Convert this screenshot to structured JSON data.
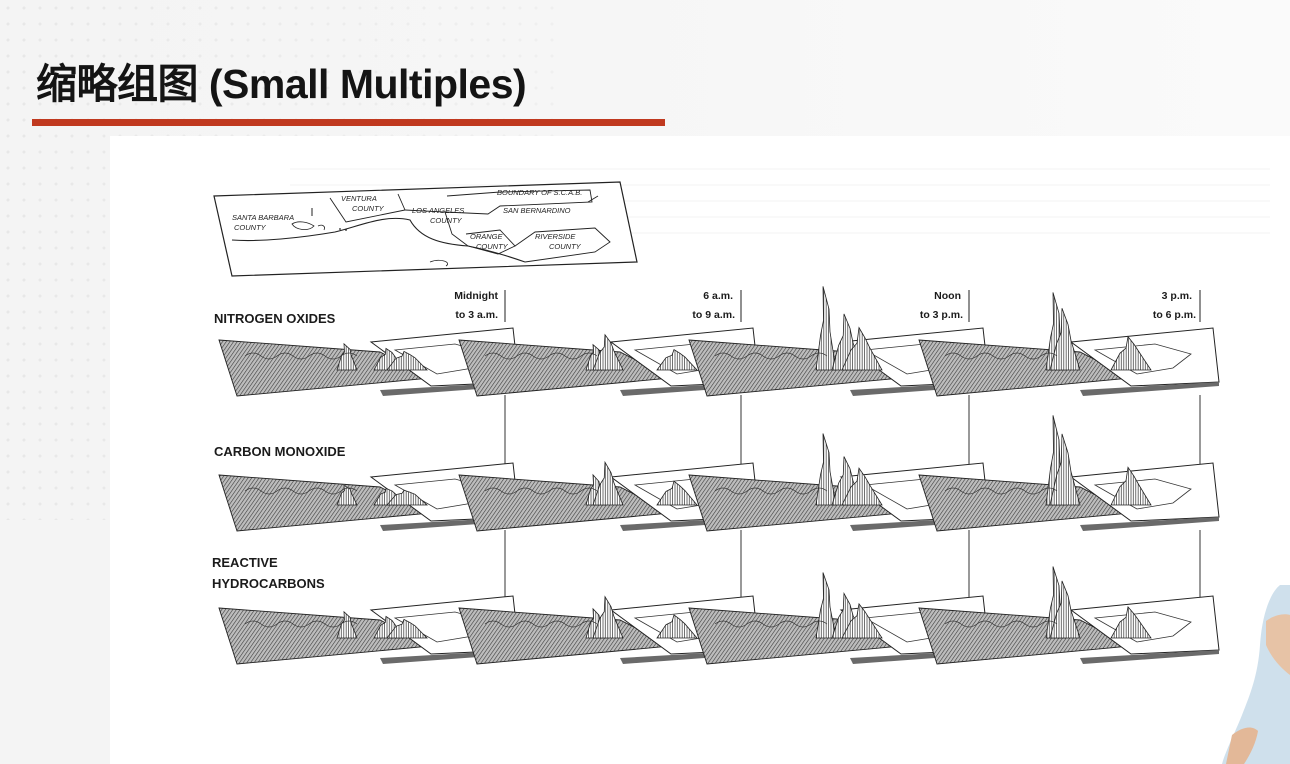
{
  "slide": {
    "title": "缩略组图 (Small Multiples)",
    "accent_color": "#c0391f"
  },
  "figure": {
    "map_labels": {
      "santa_barbara": [
        "SANTA BARBARA",
        "COUNTY"
      ],
      "ventura": [
        "VENTURA",
        "COUNTY"
      ],
      "los_angeles": [
        "LOS ANGELES",
        "COUNTY"
      ],
      "boundary": "BOUNDARY OF S.C.A.B.",
      "san_bernardino": "SAN BERNARDINO",
      "orange": [
        "ORANGE",
        "COUNTY"
      ],
      "riverside": [
        "RIVERSIDE",
        "COUNTY"
      ]
    },
    "time_periods": [
      [
        "Midnight",
        "to 3 a.m."
      ],
      [
        "6 a.m.",
        "to 9 a.m."
      ],
      [
        "Noon",
        "to 3 p.m."
      ],
      [
        "3 p.m.",
        "to 6 p.m."
      ]
    ],
    "pollutants": [
      [
        "NITROGEN OXIDES"
      ],
      [
        "CARBON MONOXIDE"
      ],
      [
        "REACTIVE",
        "HYDROCARBONS"
      ]
    ]
  }
}
